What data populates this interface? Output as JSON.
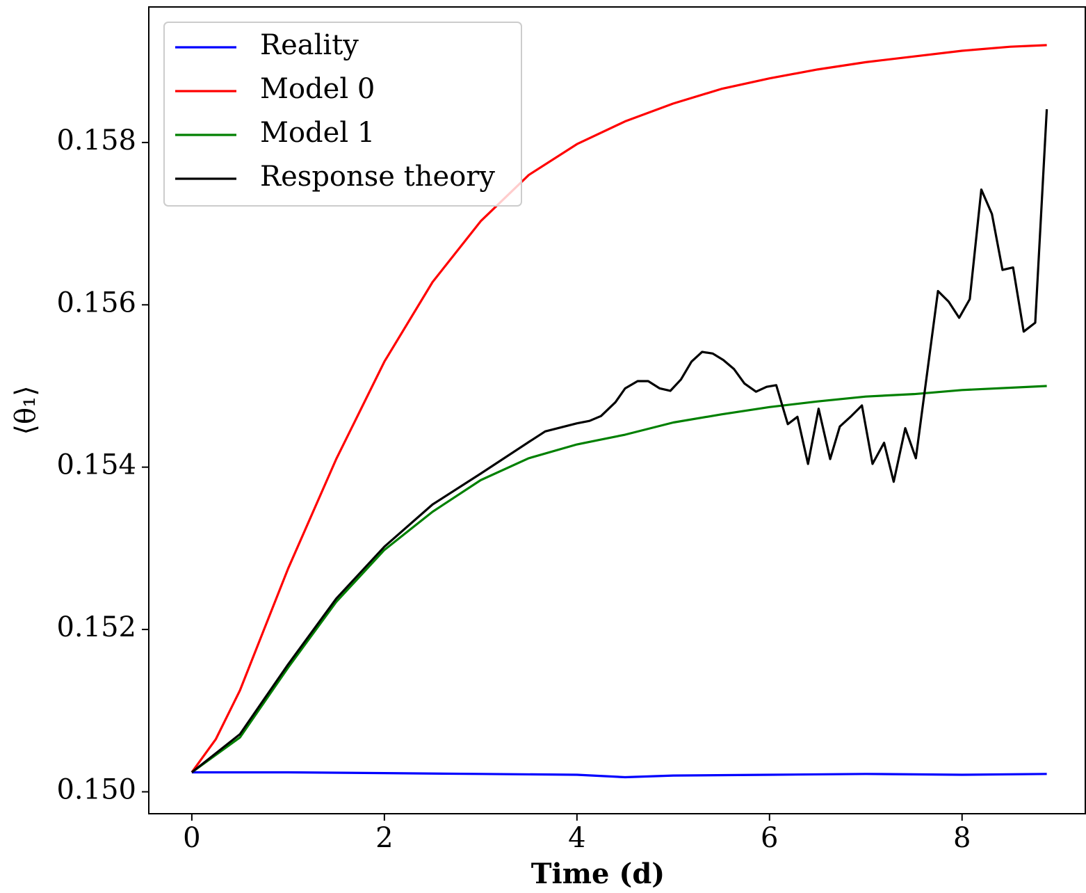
{
  "chart_data": {
    "type": "line",
    "xlabel": "Time (d)",
    "ylabel": "⟨θ₁⟩",
    "xlim": [
      -0.447,
      9.28
    ],
    "ylim": [
      0.14973,
      0.15967
    ],
    "xticks": [
      0,
      2,
      4,
      6,
      8
    ],
    "yticks": [
      {
        "value": 0.15,
        "label": "0.150"
      },
      {
        "value": 0.152,
        "label": "0.152"
      },
      {
        "value": 0.154,
        "label": "0.154"
      },
      {
        "value": 0.156,
        "label": "0.156"
      },
      {
        "value": 0.158,
        "label": "0.158"
      }
    ],
    "legend": "upper left",
    "series": [
      {
        "name": "Reality",
        "color": "#0000ff",
        "x": [
          0,
          1,
          2,
          3,
          4,
          4.5,
          5,
          6,
          7,
          8,
          8.88
        ],
        "values": [
          0.15024,
          0.15024,
          0.15023,
          0.15022,
          0.15021,
          0.15018,
          0.1502,
          0.15021,
          0.15022,
          0.15021,
          0.15022
        ]
      },
      {
        "name": "Model 0",
        "color": "#ff0000",
        "x": [
          0,
          0.25,
          0.5,
          0.75,
          1,
          1.5,
          2,
          2.5,
          3,
          3.5,
          4,
          4.5,
          5,
          5.5,
          6,
          6.5,
          7,
          7.5,
          8,
          8.5,
          8.88
        ],
        "values": [
          0.15024,
          0.15065,
          0.15125,
          0.152,
          0.15275,
          0.1541,
          0.1553,
          0.15628,
          0.15703,
          0.1576,
          0.15798,
          0.15826,
          0.15848,
          0.15866,
          0.15879,
          0.1589,
          0.15899,
          0.15906,
          0.15913,
          0.15918,
          0.1592
        ]
      },
      {
        "name": "Model 1",
        "color": "#008000",
        "x": [
          0,
          0.5,
          1,
          1.5,
          2,
          2.5,
          3,
          3.5,
          4,
          4.5,
          5,
          5.5,
          6,
          6.5,
          7,
          7.5,
          8,
          8.88
        ],
        "values": [
          0.15024,
          0.15067,
          0.15153,
          0.15234,
          0.15298,
          0.15345,
          0.15384,
          0.15411,
          0.15428,
          0.1544,
          0.15455,
          0.15465,
          0.15474,
          0.15481,
          0.15487,
          0.1549,
          0.15495,
          0.155
        ]
      },
      {
        "name": "Response theory",
        "color": "#000000",
        "x": [
          0,
          0.5,
          1,
          1.5,
          2,
          2.5,
          3,
          3.5,
          3.67,
          4,
          4.13,
          4.25,
          4.4,
          4.5,
          4.63,
          4.74,
          4.86,
          4.97,
          5.08,
          5.19,
          5.3,
          5.41,
          5.52,
          5.63,
          5.74,
          5.86,
          5.97,
          6.07,
          6.19,
          6.29,
          6.4,
          6.51,
          6.63,
          6.73,
          6.85,
          6.96,
          7.07,
          7.19,
          7.29,
          7.41,
          7.52,
          7.75,
          7.86,
          7.97,
          8.08,
          8.2,
          8.31,
          8.42,
          8.53,
          8.64,
          8.76,
          8.88
        ],
        "values": [
          0.15024,
          0.15071,
          0.15157,
          0.15238,
          0.15302,
          0.15354,
          0.15392,
          0.15431,
          0.15444,
          0.15454,
          0.15457,
          0.15463,
          0.1548,
          0.15497,
          0.15506,
          0.15506,
          0.15497,
          0.15494,
          0.15508,
          0.1553,
          0.15542,
          0.1554,
          0.15532,
          0.15521,
          0.15503,
          0.15493,
          0.15499,
          0.15501,
          0.15453,
          0.15462,
          0.15404,
          0.15472,
          0.1541,
          0.1545,
          0.15463,
          0.15476,
          0.15404,
          0.1543,
          0.15382,
          0.15448,
          0.15411,
          0.15617,
          0.15604,
          0.15584,
          0.15607,
          0.15742,
          0.15712,
          0.15643,
          0.15646,
          0.15567,
          0.15578,
          0.15841
        ]
      }
    ]
  }
}
